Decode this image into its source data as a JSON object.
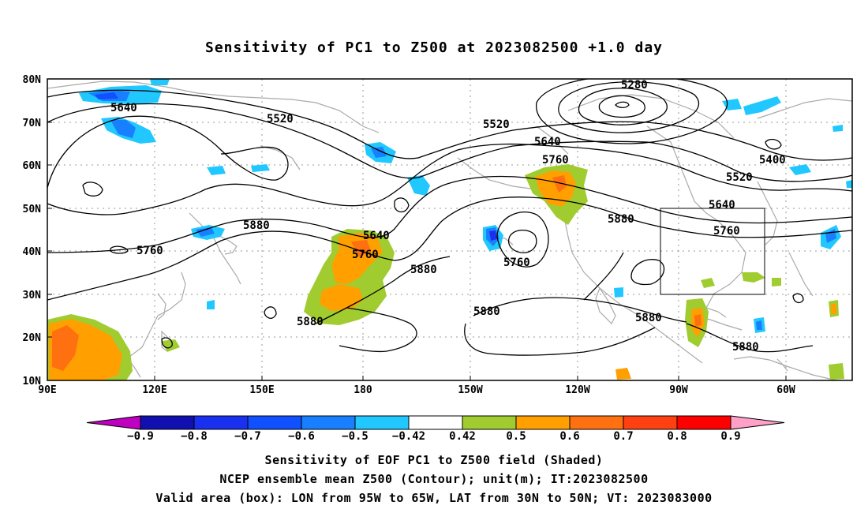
{
  "title": "Sensitivity of PC1 to Z500 at 2023082500 +1.0 day",
  "lat_labels": [
    "80N",
    "70N",
    "60N",
    "50N",
    "40N",
    "30N",
    "20N",
    "10N"
  ],
  "lon_labels": [
    "90E",
    "120E",
    "150E",
    "180",
    "150W",
    "120W",
    "90W",
    "60W"
  ],
  "contour_labels": [
    {
      "text": "5640"
    },
    {
      "text": "5520"
    },
    {
      "text": "5280"
    },
    {
      "text": "5520"
    },
    {
      "text": "5640"
    },
    {
      "text": "5760"
    },
    {
      "text": "5400"
    },
    {
      "text": "5520"
    },
    {
      "text": "5640"
    },
    {
      "text": "5760"
    },
    {
      "text": "5880"
    },
    {
      "text": "5760"
    },
    {
      "text": "5640"
    },
    {
      "text": "5760"
    },
    {
      "text": "5880"
    },
    {
      "text": "5880"
    },
    {
      "text": "5760"
    },
    {
      "text": "5880"
    },
    {
      "text": "5880"
    },
    {
      "text": "5880"
    },
    {
      "text": "5880"
    }
  ],
  "colorbar": {
    "colors": [
      "#c000c0",
      "#1010b0",
      "#1a30f0",
      "#1050ff",
      "#1880ff",
      "#20c8ff",
      "#ffffff",
      "#a0cc30",
      "#ffa000",
      "#ff7010",
      "#ff4010",
      "#ff0000",
      "#ffa0c8"
    ],
    "labels": [
      "-0.9",
      "-0.8",
      "-0.7",
      "-0.6",
      "-0.5",
      "-0.42",
      "0.42",
      "0.5",
      "0.6",
      "0.7",
      "0.8",
      "0.9"
    ]
  },
  "footer": {
    "line1": "Sensitivity of EOF PC1 to Z500 field (Shaded)",
    "line2": "NCEP ensemble mean Z500 (Contour); unit(m); IT:2023082500",
    "line3": "Valid area (box): LON from 95W to 65W, LAT from 30N to 50N; VT: 2023083000"
  }
}
